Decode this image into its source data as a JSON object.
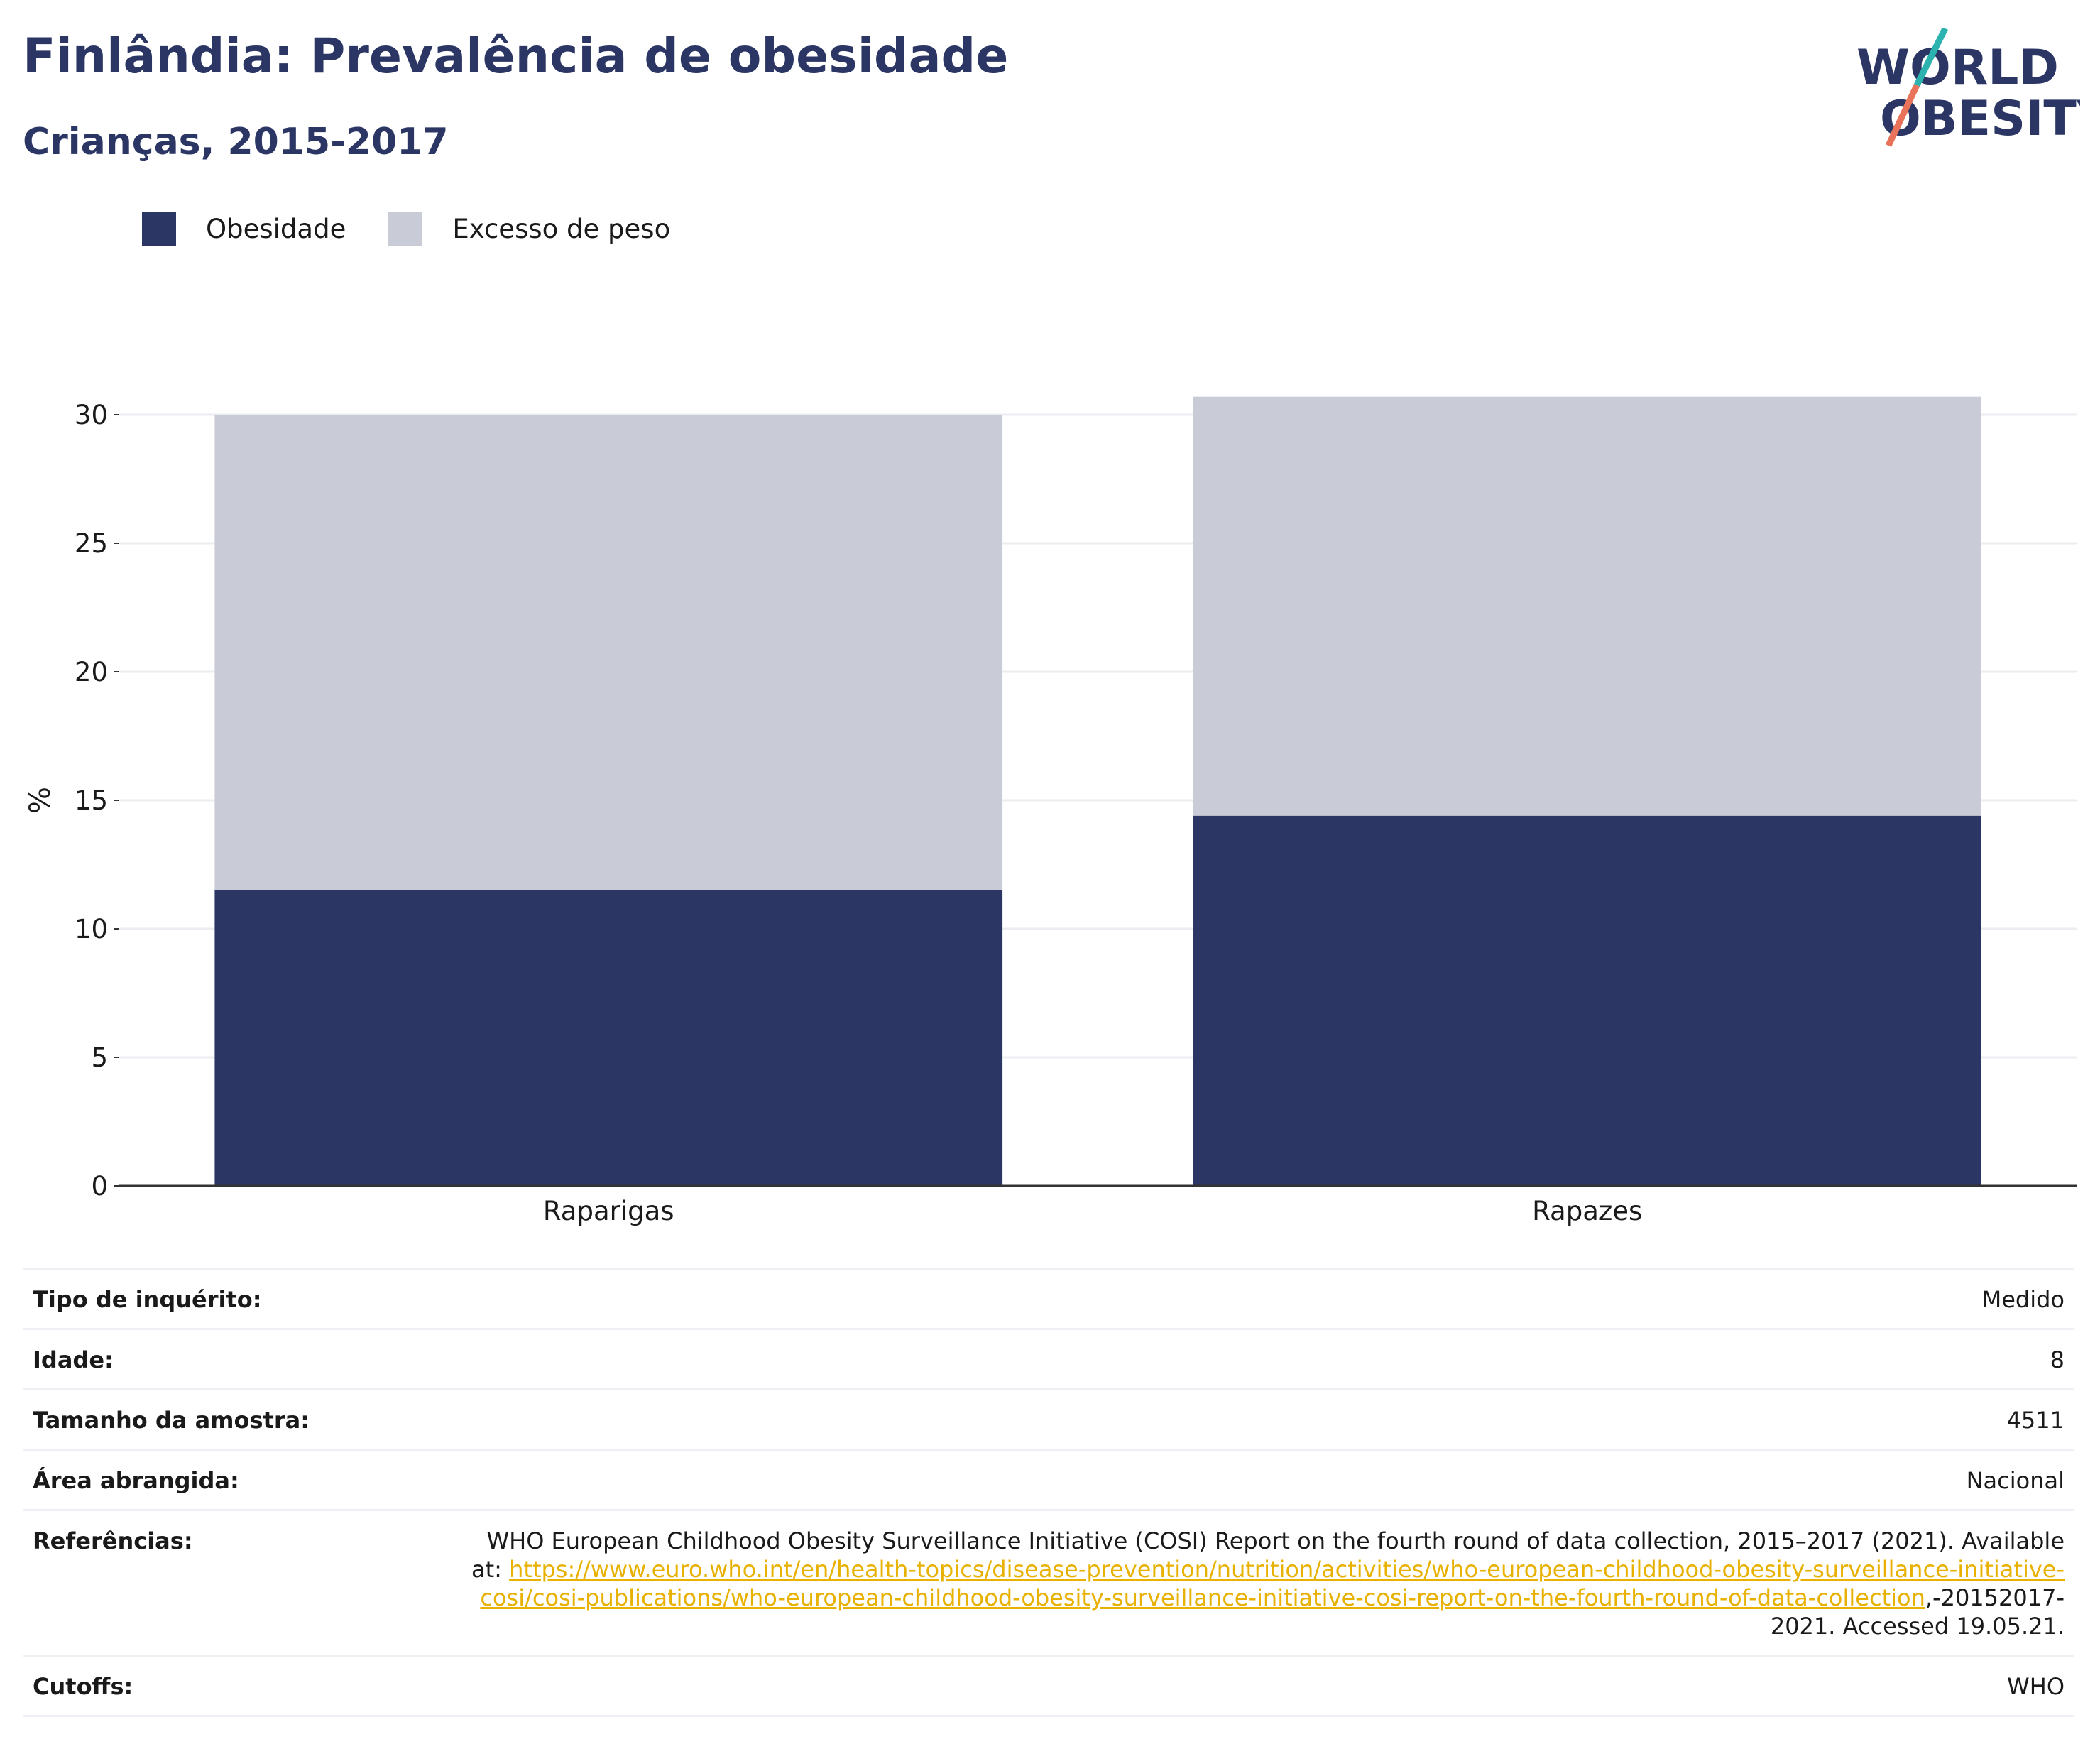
{
  "title": "Finlândia: Prevalência de obesidade",
  "subtitle": "Crianças, 2015-2017",
  "logo": {
    "line1": "WORLD",
    "line2": "OBESITY"
  },
  "colors": {
    "obesity": "#2b3664",
    "overweight": "#c9ccd7",
    "title": "#2b3664",
    "link": "#e8b100",
    "logo_teal": "#2cb3b0",
    "logo_coral": "#e8735a"
  },
  "legend": [
    {
      "label": "Obesidade",
      "color": "#2b3664"
    },
    {
      "label": "Excesso de peso",
      "color": "#c9ccd7"
    }
  ],
  "chart_data": {
    "type": "bar",
    "stacked": true,
    "categories": [
      "Raparigas",
      "Rapazes"
    ],
    "series": [
      {
        "name": "Obesidade",
        "values": [
          11.5,
          14.4
        ]
      },
      {
        "name": "Excesso de peso",
        "values": [
          18.5,
          16.3
        ]
      }
    ],
    "ylabel": "%",
    "ylim": [
      0,
      30.7
    ],
    "yticks": [
      0,
      5,
      10,
      15,
      20,
      25,
      30
    ],
    "grid": true,
    "legend_position": "top-left"
  },
  "info": {
    "survey_type": {
      "label": "Tipo de inquérito:",
      "value": "Medido"
    },
    "age": {
      "label": "Idade:",
      "value": "8"
    },
    "sample_size": {
      "label": "Tamanho da amostra:",
      "value": "4511"
    },
    "area": {
      "label": "Área abrangida:",
      "value": "Nacional"
    },
    "references": {
      "label": "Referências:",
      "text_before": "WHO European Childhood Obesity Surveillance Initiative (COSI) Report on the fourth round of data collection, 2015–2017 (2021). Available at: ",
      "link": "https://www.euro.who.int/en/health-topics/disease-prevention/nutrition/activities/who-european-childhood-obesity-surveillance-initiative-cosi/cosi-publications/who-european-childhood-obesity-surveillance-initiative-cosi-report-on-the-fourth-round-of-data-collection",
      "text_after": ",-20152017-2021. Accessed 19.05.21."
    },
    "cutoffs": {
      "label": "Cutoffs:",
      "value": "WHO"
    }
  }
}
